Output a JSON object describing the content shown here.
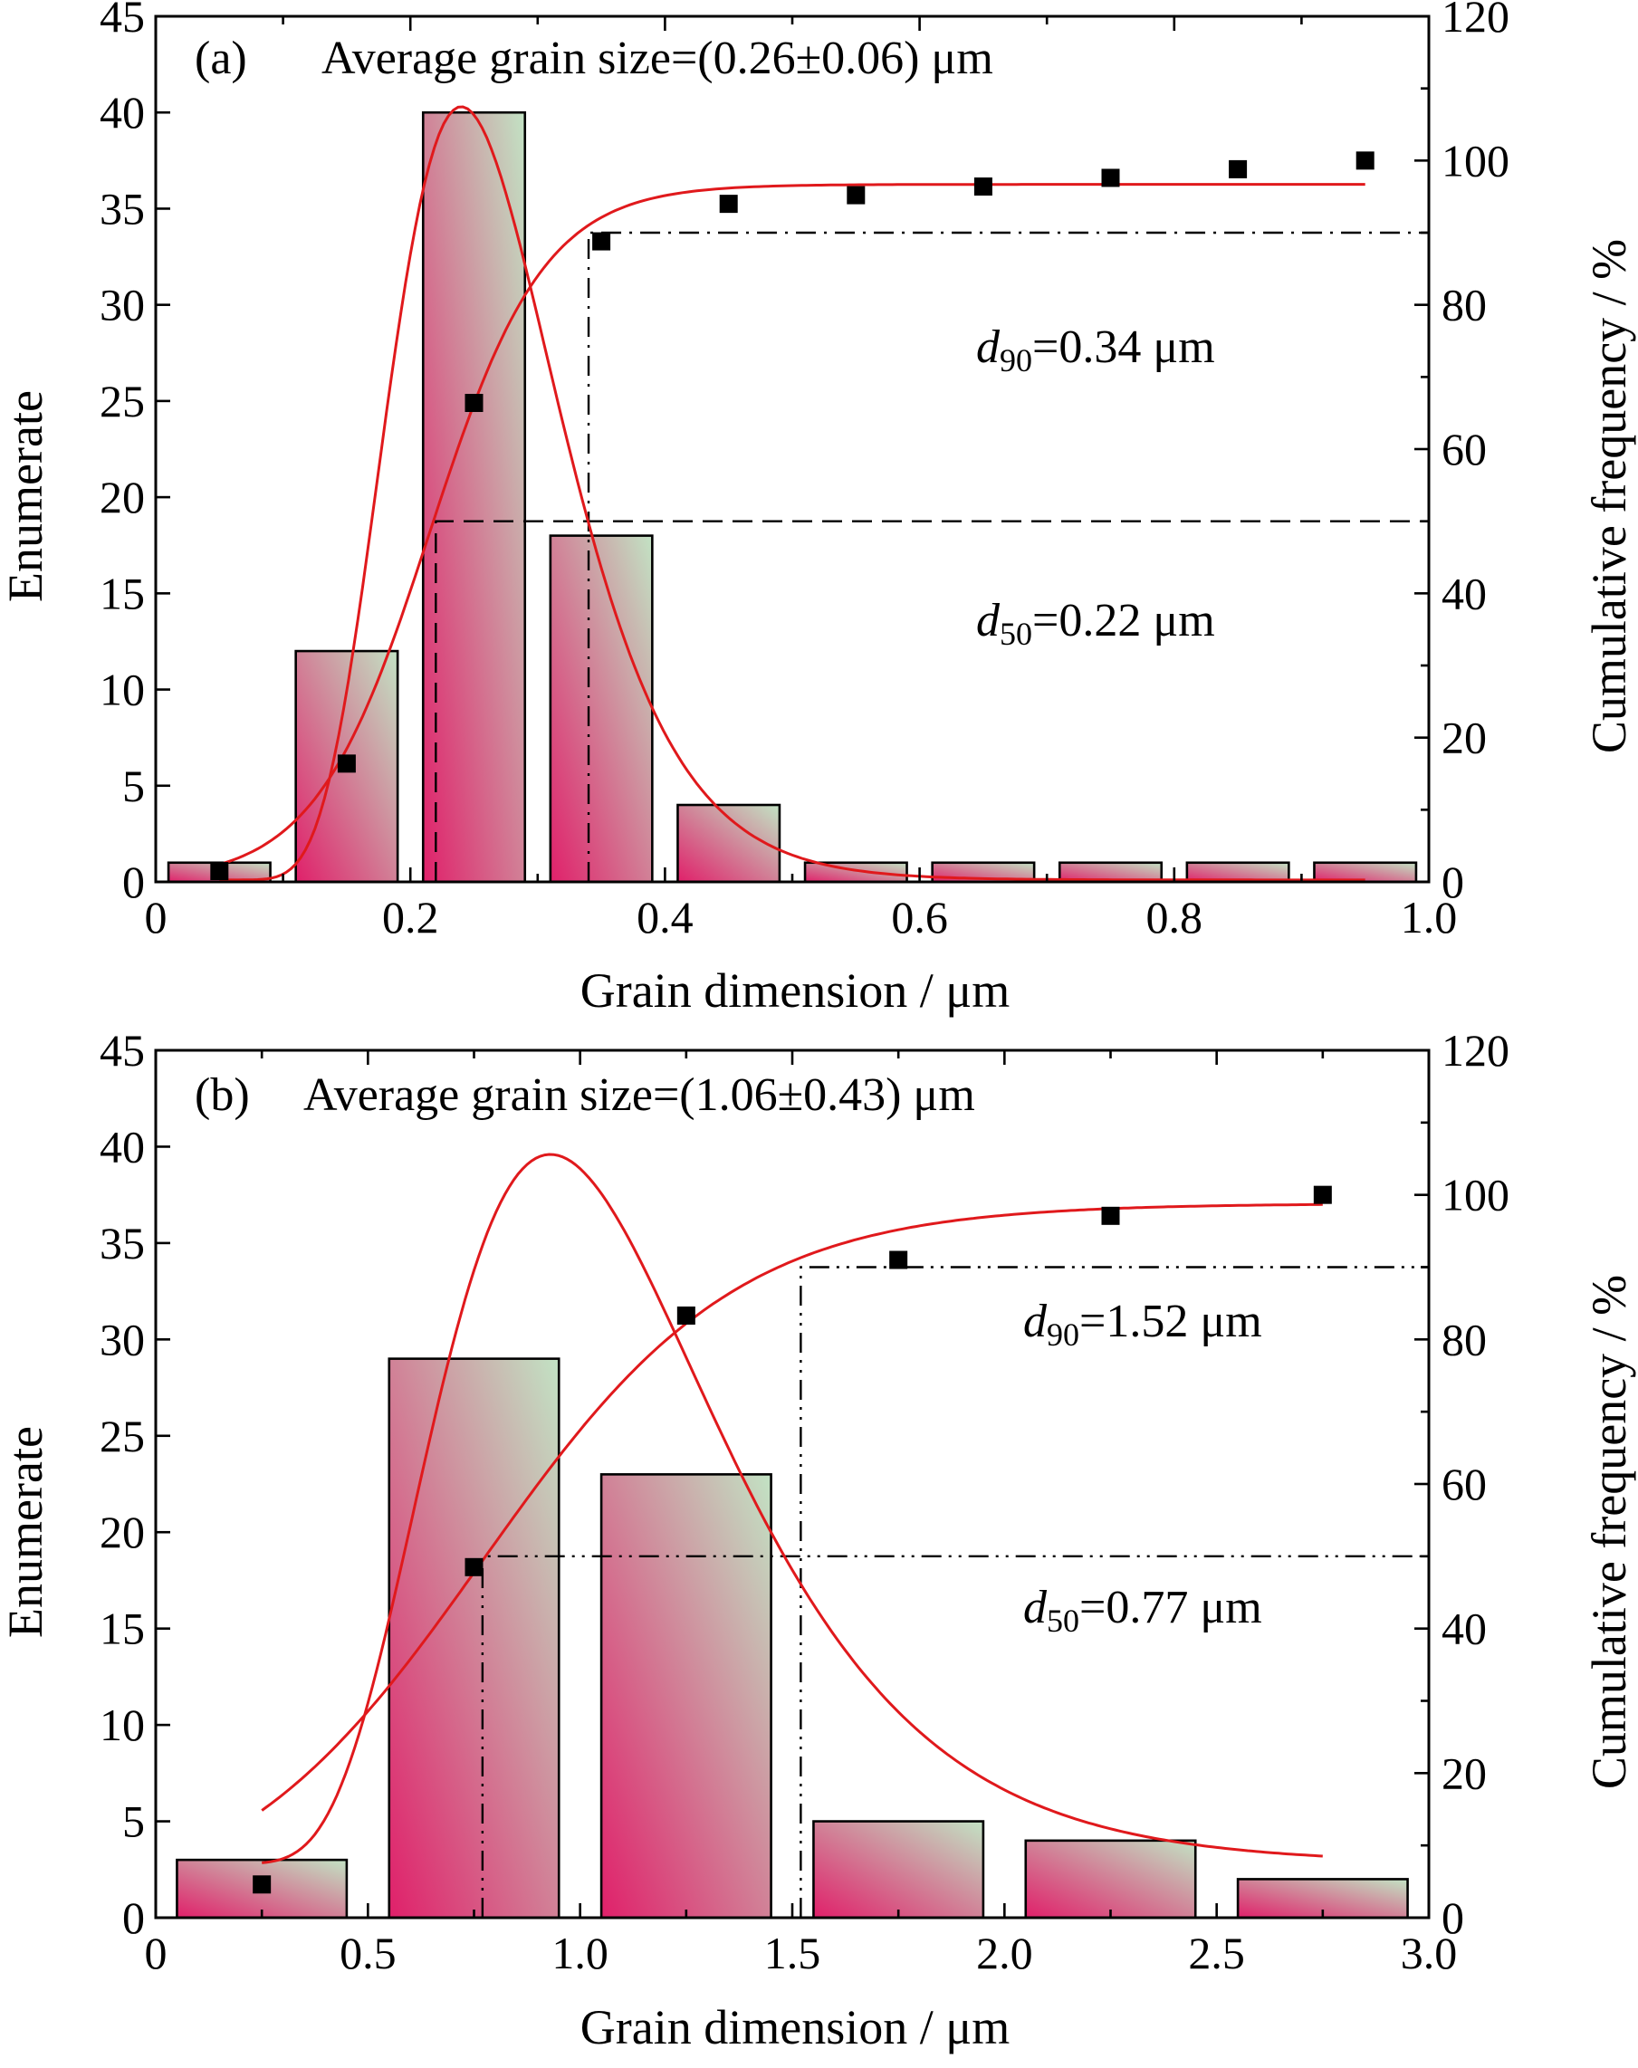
{
  "chart_data": [
    {
      "type": "bar",
      "panel_label": "(a)",
      "title": "Average grain size=(0.26±0.06) μm",
      "xlabel": "Grain dimension / μm",
      "ylabel": "Enumerate",
      "y2label": "Cumulative frequency / %",
      "xlim": [
        0,
        1.0
      ],
      "ylim": [
        0,
        45
      ],
      "y2lim": [
        0,
        120
      ],
      "xticks": [
        "0",
        "0.2",
        "0.4",
        "0.6",
        "0.8",
        "1.0"
      ],
      "xtick_values": [
        0,
        0.2,
        0.4,
        0.6,
        0.8,
        1.0
      ],
      "yticks": [
        "0",
        "5",
        "10",
        "15",
        "20",
        "25",
        "30",
        "35",
        "40",
        "45"
      ],
      "y2ticks": [
        "0",
        "20",
        "40",
        "60",
        "80",
        "100",
        "120"
      ],
      "bar_width": 0.08,
      "bars": [
        {
          "x": 0.05,
          "y": 1
        },
        {
          "x": 0.15,
          "y": 12
        },
        {
          "x": 0.25,
          "y": 40
        },
        {
          "x": 0.35,
          "y": 18
        },
        {
          "x": 0.45,
          "y": 4
        },
        {
          "x": 0.55,
          "y": 1
        },
        {
          "x": 0.65,
          "y": 1
        },
        {
          "x": 0.75,
          "y": 1
        },
        {
          "x": 0.85,
          "y": 1
        },
        {
          "x": 0.95,
          "y": 1
        }
      ],
      "cumulative_points": [
        {
          "x": 0.05,
          "y": 1.5
        },
        {
          "x": 0.15,
          "y": 16.4
        },
        {
          "x": 0.25,
          "y": 66.4
        },
        {
          "x": 0.35,
          "y": 88.8
        },
        {
          "x": 0.45,
          "y": 94.0
        },
        {
          "x": 0.55,
          "y": 95.2
        },
        {
          "x": 0.65,
          "y": 96.4
        },
        {
          "x": 0.75,
          "y": 97.6
        },
        {
          "x": 0.85,
          "y": 98.8
        },
        {
          "x": 0.95,
          "y": 100
        }
      ],
      "distribution_fit": {
        "type": "lognormal",
        "xc": 0.24,
        "w": 0.28,
        "peak": 40.3,
        "baseline": 0.1,
        "x_range": [
          0.05,
          0.95
        ]
      },
      "cumulative_fit": {
        "type": "sigmoid",
        "top": 96.7,
        "bottom": 0,
        "x50": 0.215,
        "slope": 0.045,
        "x_range": [
          0.05,
          0.95
        ]
      },
      "d50": {
        "value": 0.22,
        "percent": 50,
        "label_symbol": "d",
        "label_sub": "50",
        "label_value": "=0.22 μm",
        "line_style": "dashed"
      },
      "d90": {
        "value": 0.34,
        "percent": 90,
        "label_symbol": "d",
        "label_sub": "90",
        "label_value": "=0.34 μm",
        "line_style": "dash-dot"
      },
      "colors": {
        "bar_gradient_start": "#e0206a",
        "bar_gradient_end": "#c2e3c4",
        "fit": "#e0191c",
        "points": "#000000"
      }
    },
    {
      "type": "bar",
      "panel_label": "(b)",
      "title": "Average grain size=(1.06±0.43) μm",
      "xlabel": "Grain dimension / μm",
      "ylabel": "Enumerate",
      "y2label": "Cumulative frequency / %",
      "xlim": [
        0,
        3.0
      ],
      "ylim": [
        0,
        45
      ],
      "y2lim": [
        0,
        120
      ],
      "xticks": [
        "0",
        "0.5",
        "1.0",
        "1.5",
        "2.0",
        "2.5",
        "3.0"
      ],
      "xtick_values": [
        0,
        0.5,
        1.0,
        1.5,
        2.0,
        2.5,
        3.0
      ],
      "yticks": [
        "0",
        "5",
        "10",
        "15",
        "20",
        "25",
        "30",
        "35",
        "40",
        "45"
      ],
      "y2ticks": [
        "0",
        "20",
        "40",
        "60",
        "80",
        "100",
        "120"
      ],
      "bar_width": 0.4,
      "bars": [
        {
          "x": 0.25,
          "y": 3
        },
        {
          "x": 0.75,
          "y": 29
        },
        {
          "x": 1.25,
          "y": 23
        },
        {
          "x": 1.75,
          "y": 5
        },
        {
          "x": 2.25,
          "y": 4
        },
        {
          "x": 2.75,
          "y": 2
        }
      ],
      "cumulative_points": [
        {
          "x": 0.25,
          "y": 4.6
        },
        {
          "x": 0.75,
          "y": 48.5
        },
        {
          "x": 1.25,
          "y": 83.3
        },
        {
          "x": 1.75,
          "y": 91.0
        },
        {
          "x": 2.25,
          "y": 97.1
        },
        {
          "x": 2.75,
          "y": 100
        }
      ],
      "distribution_fit": {
        "type": "lognormal",
        "xc": 0.93,
        "w": 0.36,
        "peak": 39.6,
        "baseline": 2.8,
        "x_range": [
          0.25,
          2.75
        ]
      },
      "cumulative_fit": {
        "type": "sigmoid",
        "top": 98.8,
        "bottom": 0,
        "x50": 0.77,
        "slope": 0.3,
        "x_range": [
          0.25,
          2.75
        ]
      },
      "d50": {
        "value": 0.77,
        "percent": 50,
        "label_symbol": "d",
        "label_sub": "50",
        "label_value": "=0.77 μm",
        "line_style": "dash-dot-dot"
      },
      "d90": {
        "value": 1.52,
        "percent": 90,
        "label_symbol": "d",
        "label_sub": "90",
        "label_value": "=1.52 μm",
        "line_style": "dash-dot-dot"
      },
      "colors": {
        "bar_gradient_start": "#e0206a",
        "bar_gradient_end": "#c2e3c4",
        "fit": "#e0191c",
        "points": "#000000"
      }
    }
  ]
}
